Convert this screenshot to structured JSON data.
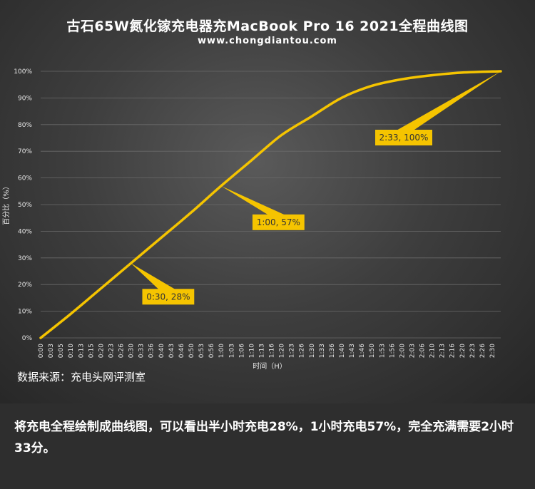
{
  "title": "古石65W氮化镓充电器充MacBook  Pro 16 2021全程曲线图",
  "subtitle": "www.chongdiantou.com",
  "source_note": "数据来源：充电头网评测室",
  "caption": "将充电全程绘制成曲线图，可以看出半小时充电28%，1小时充电57%，完全充满需要2小时33分。",
  "colors": {
    "line": "#f5c400",
    "callout": "#f5c400",
    "grid": "#6a6a6a"
  },
  "chart_data": {
    "type": "line",
    "xlabel": "时间（H）",
    "ylabel": "百分比（%）",
    "ylim": [
      0,
      100
    ],
    "y_ticks": [
      "0%",
      "10%",
      "20%",
      "30%",
      "40%",
      "50%",
      "60%",
      "70%",
      "80%",
      "90%",
      "100%"
    ],
    "x_tick_labels": [
      "0:00",
      "0:03",
      "0:05",
      "0:10",
      "0:13",
      "0:15",
      "0:20",
      "0:23",
      "0:26",
      "0:30",
      "0:33",
      "0:36",
      "0:40",
      "0:43",
      "0:46",
      "0:50",
      "0:53",
      "0:56",
      "1:00",
      "1:03",
      "1:06",
      "1:10",
      "1:13",
      "1:16",
      "1:20",
      "1:23",
      "1:26",
      "1:30",
      "1:33",
      "1:36",
      "1:40",
      "1:43",
      "1:46",
      "1:50",
      "1:53",
      "1:56",
      "2:00",
      "2:03",
      "2:06",
      "2:10",
      "2:13",
      "2:16",
      "2:20",
      "2:23",
      "2:26",
      "2:30"
    ],
    "series": [
      {
        "x": [
          "0:00",
          "0:10",
          "0:20",
          "0:30",
          "0:40",
          "0:50",
          "1:00",
          "1:10",
          "1:20",
          "1:30",
          "1:40",
          "1:50",
          "2:00",
          "2:10",
          "2:20",
          "2:33"
        ],
        "values": [
          0,
          9,
          18.5,
          28,
          37.5,
          47,
          57,
          66.5,
          76,
          83,
          90,
          94.5,
          97,
          98.5,
          99.5,
          100
        ]
      }
    ],
    "annotations": [
      {
        "x": "0:30",
        "y": 28,
        "label": "0:30, 28%"
      },
      {
        "x": "1:00",
        "y": 57,
        "label": "1:00, 57%"
      },
      {
        "x": "2:33",
        "y": 100,
        "label": "2:33, 100%"
      }
    ]
  }
}
